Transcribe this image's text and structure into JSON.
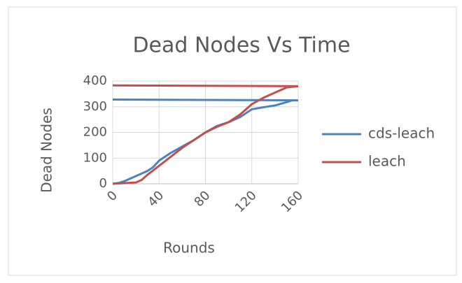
{
  "chart_data": {
    "type": "line",
    "title": "Dead Nodes Vs Time",
    "xlabel": "Rounds",
    "ylabel": "Dead Nodes",
    "xlim": [
      0,
      160
    ],
    "xticks": [
      0,
      40,
      80,
      120,
      160
    ],
    "ylim": [
      0,
      400
    ],
    "yticks": [
      0,
      100,
      200,
      300,
      400
    ],
    "grid": true,
    "legend": "right",
    "series": [
      {
        "name": "cds-leach",
        "color": "#4f81bd",
        "x": [
          0,
          5,
          10,
          20,
          30,
          35,
          40,
          45,
          50,
          60,
          70,
          80,
          90,
          100,
          110,
          120,
          130,
          140,
          150,
          155,
          160,
          0
        ],
        "values": [
          0,
          3,
          10,
          30,
          50,
          65,
          90,
          105,
          120,
          145,
          170,
          200,
          225,
          240,
          260,
          290,
          298,
          305,
          318,
          325,
          325,
          328
        ]
      },
      {
        "name": "leach",
        "color": "#c0504d",
        "x": [
          0,
          20,
          25,
          30,
          40,
          50,
          60,
          70,
          80,
          90,
          100,
          110,
          120,
          130,
          140,
          150,
          160,
          0
        ],
        "values": [
          0,
          5,
          15,
          35,
          70,
          105,
          140,
          170,
          200,
          222,
          240,
          270,
          310,
          335,
          355,
          375,
          380,
          383
        ]
      }
    ]
  }
}
